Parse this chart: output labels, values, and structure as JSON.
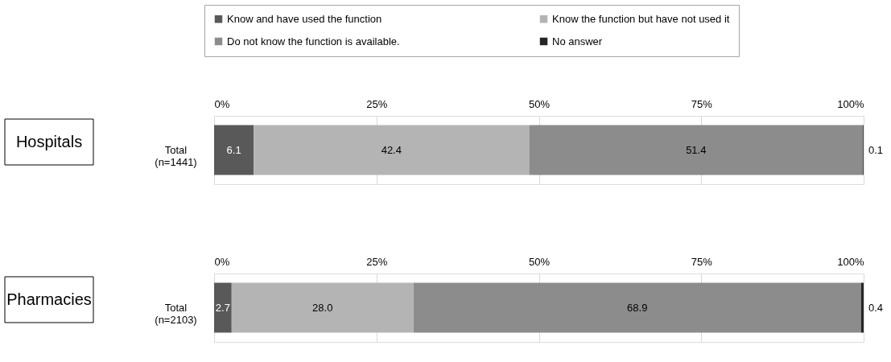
{
  "chart_data": [
    {
      "type": "bar",
      "orientation": "horizontal",
      "stacked": true,
      "title": "Hospitals",
      "categories": [
        "Total\n(n=1441)"
      ],
      "series": [
        {
          "name": "Know and have used the function",
          "color": "#595959",
          "values": [
            6.1
          ],
          "value_labels": [
            "6.1"
          ]
        },
        {
          "name": "Know the function but have not used it",
          "color": "#b4b4b4",
          "values": [
            42.4
          ],
          "value_labels": [
            "42.4"
          ]
        },
        {
          "name": "Do not know the function is available.",
          "color": "#8c8c8c",
          "values": [
            51.4
          ],
          "value_labels": [
            "51.4"
          ]
        },
        {
          "name": "No answer",
          "color": "#262626",
          "values": [
            0.1
          ],
          "value_labels": [
            "0.1"
          ]
        }
      ],
      "xlim": [
        0,
        100
      ],
      "xticks": [
        {
          "value": 0,
          "label": "0%"
        },
        {
          "value": 25,
          "label": "25%"
        },
        {
          "value": 50,
          "label": "50%"
        },
        {
          "value": 75,
          "label": "75%"
        },
        {
          "value": 100,
          "label": "100%"
        }
      ],
      "grid": "x",
      "legend": "top"
    },
    {
      "type": "bar",
      "orientation": "horizontal",
      "stacked": true,
      "title": "Pharmacies",
      "categories": [
        "Total\n(n=2103)"
      ],
      "series": [
        {
          "color": "#595959",
          "values": [
            2.7
          ],
          "value_labels": [
            "2.7"
          ]
        },
        {
          "color": "#b4b4b4",
          "values": [
            28.0
          ],
          "value_labels": [
            "28.0"
          ]
        },
        {
          "color": "#8c8c8c",
          "values": [
            68.9
          ],
          "value_labels": [
            "68.9"
          ]
        },
        {
          "color": "#262626",
          "values": [
            0.4
          ],
          "value_labels": [
            "0.4"
          ]
        }
      ],
      "xlim": [
        0,
        100
      ],
      "xticks": [
        {
          "value": 0,
          "label": "0%"
        },
        {
          "value": 25,
          "label": "25%"
        },
        {
          "value": 50,
          "label": "50%"
        },
        {
          "value": 75,
          "label": "75%"
        },
        {
          "value": 100,
          "label": "100%"
        }
      ],
      "grid": "x"
    }
  ]
}
